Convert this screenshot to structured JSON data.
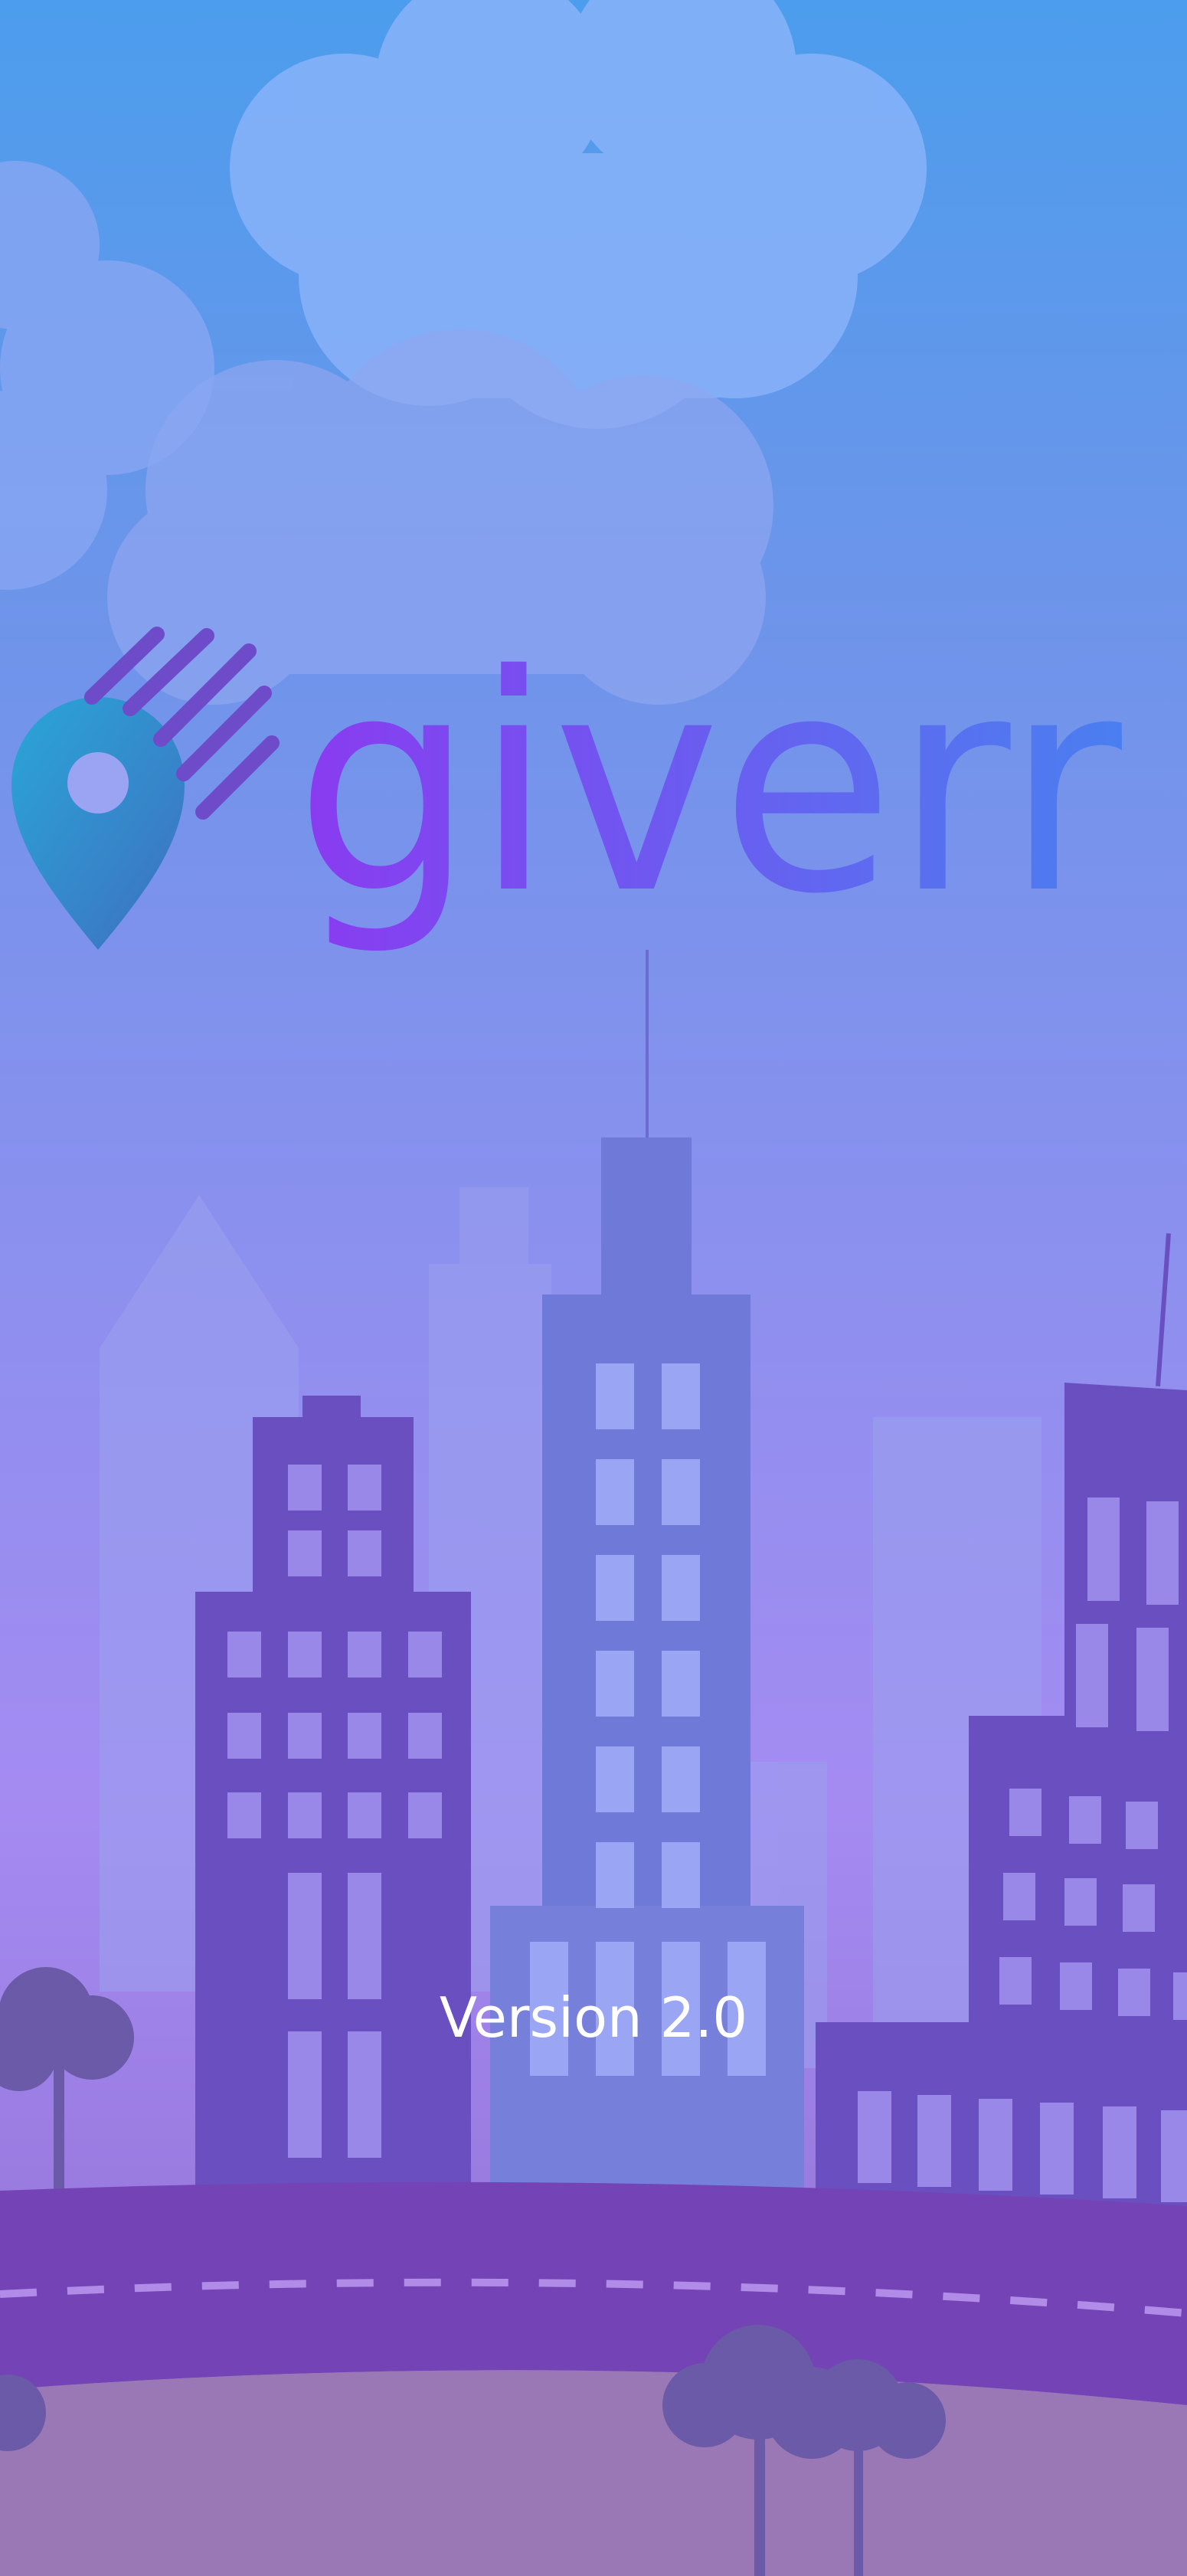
{
  "brand": {
    "name": "giverr",
    "logo_icon": "location-pin-icon",
    "gradient_start": "#8a3bf0",
    "gradient_end": "#4a7ff0"
  },
  "splash": {
    "version_text": "Version 2.0"
  },
  "colors": {
    "sky_top": "#4c9ded",
    "sky_bottom": "#a48bf2",
    "building_dark": "#6a4fc0",
    "road": "#7443b5",
    "ground": "#9a78b5"
  }
}
